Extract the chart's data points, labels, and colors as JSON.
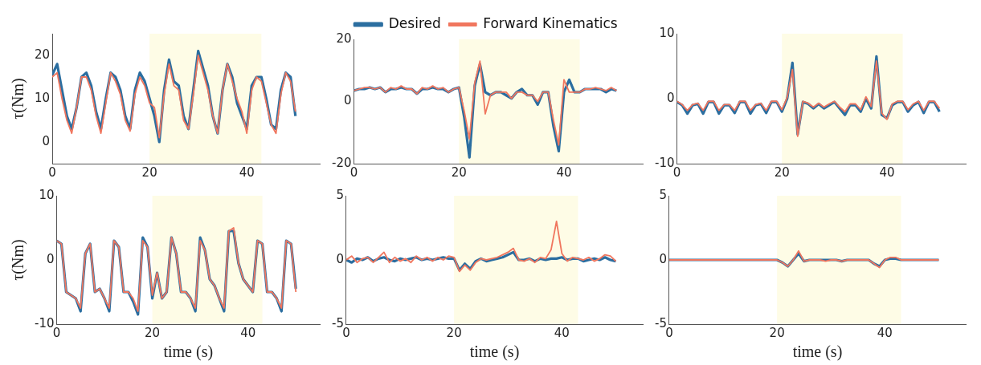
{
  "chart_data": [
    {
      "type": "line",
      "ylabel": "τ(Nm)",
      "x": [
        0,
        1,
        2,
        3,
        4,
        5,
        6,
        7,
        8,
        9,
        10,
        11,
        12,
        13,
        14,
        15,
        16,
        17,
        18,
        19,
        20,
        21,
        22,
        23,
        24,
        25,
        26,
        27,
        28,
        29,
        30,
        31,
        32,
        33,
        34,
        35,
        36,
        37,
        38,
        39,
        40,
        41,
        42,
        43,
        44,
        45,
        46,
        47,
        48,
        49,
        50
      ],
      "xlim": [
        0,
        55
      ],
      "xticks": [
        0,
        20,
        40
      ],
      "ylim": [
        -5,
        25
      ],
      "yticks": [
        0,
        10,
        20
      ],
      "grid": false,
      "bands": [
        {
          "axis": "x",
          "from": 20,
          "to": 43,
          "color": "#fefce6"
        }
      ],
      "series": [
        {
          "color": "#2b6ea0",
          "values": [
            15.5,
            18,
            12,
            6,
            3,
            8,
            15,
            16,
            13,
            7,
            3,
            10,
            16,
            15,
            12,
            6,
            3,
            12,
            16,
            14,
            10,
            6,
            0,
            12,
            19,
            14,
            13,
            6,
            3,
            12,
            21,
            17,
            13,
            6,
            2,
            12,
            18,
            15,
            9,
            6,
            3,
            13,
            15,
            15,
            10,
            4,
            3,
            12,
            16,
            15,
            6
          ]
        },
        {
          "color": "#f0765e",
          "values": [
            15,
            16,
            10,
            5,
            2,
            8,
            15,
            15,
            12,
            6,
            2,
            9,
            16,
            14,
            11,
            5,
            2.5,
            11,
            15,
            13,
            9,
            8,
            1,
            11,
            18,
            13,
            12,
            5,
            3,
            11,
            20,
            16,
            12,
            6,
            2,
            12,
            18,
            14,
            10,
            7,
            2,
            12,
            15,
            14,
            9,
            4,
            2,
            11,
            16,
            14,
            7
          ]
        }
      ]
    },
    {
      "type": "line",
      "legend": "top",
      "x": [
        0,
        1,
        2,
        3,
        4,
        5,
        6,
        7,
        8,
        9,
        10,
        11,
        12,
        13,
        14,
        15,
        16,
        17,
        18,
        19,
        20,
        21,
        22,
        23,
        24,
        25,
        26,
        27,
        28,
        29,
        30,
        31,
        32,
        33,
        34,
        35,
        36,
        37,
        38,
        39,
        40,
        41,
        42,
        43,
        44,
        45,
        46,
        47,
        48,
        49,
        50
      ],
      "xlim": [
        0,
        55
      ],
      "xticks": [
        0,
        20,
        40
      ],
      "ylim": [
        -20,
        20
      ],
      "yticks": [
        -20,
        0,
        20
      ],
      "grid": false,
      "bands": [
        {
          "axis": "x",
          "from": 20,
          "to": 43,
          "color": "#fefce6"
        }
      ],
      "series": [
        {
          "name": "Desired",
          "color": "#2b6ea0",
          "values": [
            3.5,
            4,
            4,
            4.5,
            4,
            4.5,
            3,
            4,
            4,
            4.5,
            4,
            4,
            2.5,
            4,
            4,
            4.5,
            4,
            4,
            3,
            4,
            4.5,
            -5,
            -18,
            5,
            12,
            3,
            2,
            3,
            3,
            2,
            1,
            3,
            4,
            2,
            2,
            -1,
            3,
            3,
            -8,
            -16,
            3,
            7,
            3,
            3,
            4,
            4,
            4,
            4,
            3,
            4,
            3.5
          ]
        },
        {
          "name": "Forward Kinematics",
          "color": "#f0765e",
          "values": [
            3.5,
            4,
            4.5,
            4.5,
            4,
            4.5,
            3,
            4.5,
            4,
            5,
            4,
            4,
            2.5,
            4.5,
            4,
            5,
            4,
            4.5,
            3,
            4,
            4.5,
            -3,
            -12,
            6,
            13,
            -4,
            2,
            3,
            3,
            3,
            1,
            3,
            3,
            2,
            2,
            0,
            3,
            3,
            -6,
            -14,
            7,
            3,
            3,
            3,
            4,
            4,
            4.5,
            4,
            3.5,
            4.5,
            3.5
          ]
        }
      ]
    },
    {
      "type": "line",
      "x": [
        0,
        1,
        2,
        3,
        4,
        5,
        6,
        7,
        8,
        9,
        10,
        11,
        12,
        13,
        14,
        15,
        16,
        17,
        18,
        19,
        20,
        21,
        22,
        23,
        24,
        25,
        26,
        27,
        28,
        29,
        30,
        31,
        32,
        33,
        34,
        35,
        36,
        37,
        38,
        39,
        40,
        41,
        42,
        43,
        44,
        45,
        46,
        47,
        48,
        49,
        50
      ],
      "xlim": [
        0,
        55
      ],
      "xticks": [
        0,
        20,
        40
      ],
      "ylim": [
        -10,
        10
      ],
      "yticks": [
        -10,
        0,
        10
      ],
      "grid": false,
      "bands": [
        {
          "axis": "x",
          "from": 20,
          "to": 43,
          "color": "#fefce6"
        }
      ],
      "series": [
        {
          "color": "#2b6ea0",
          "values": [
            -0.5,
            -1,
            -2.3,
            -1,
            -0.8,
            -2.3,
            -0.5,
            -0.5,
            -2.3,
            -1,
            -1,
            -2.2,
            -0.5,
            -0.5,
            -2.3,
            -1,
            -0.8,
            -2.2,
            -0.5,
            -0.5,
            -2,
            0,
            5.5,
            -5.5,
            -0.5,
            -0.8,
            -1.5,
            -0.8,
            -1.5,
            -1,
            -0.5,
            -1.5,
            -2.5,
            -1,
            -1,
            -2,
            0,
            -1.5,
            6.5,
            -2.5,
            -3,
            -1,
            -0.5,
            -0.5,
            -2,
            -1,
            -0.5,
            -2.2,
            -0.5,
            -0.5,
            -2
          ]
        },
        {
          "color": "#f0765e",
          "values": [
            -0.4,
            -0.9,
            -1.8,
            -0.9,
            -0.7,
            -1.8,
            -0.4,
            -0.4,
            -1.8,
            -0.9,
            -0.9,
            -1.8,
            -0.4,
            -0.4,
            -1.8,
            -0.9,
            -0.7,
            -1.8,
            -0.4,
            -0.4,
            -1.7,
            0.2,
            4.5,
            -5.8,
            -0.4,
            -0.7,
            -1.3,
            -0.7,
            -1.3,
            -0.8,
            -0.4,
            -1.3,
            -2,
            -0.8,
            -0.8,
            -1.7,
            0.3,
            -1.2,
            5.8,
            -2.2,
            -3.2,
            -0.8,
            -0.4,
            -0.4,
            -1.7,
            -0.8,
            -0.4,
            -1.8,
            -0.4,
            -0.4,
            -1.5
          ]
        }
      ]
    },
    {
      "type": "line",
      "xlabel": "time (s)",
      "ylabel": "τ(Nm)",
      "x": [
        0,
        1,
        2,
        3,
        4,
        5,
        6,
        7,
        8,
        9,
        10,
        11,
        12,
        13,
        14,
        15,
        16,
        17,
        18,
        19,
        20,
        21,
        22,
        23,
        24,
        25,
        26,
        27,
        28,
        29,
        30,
        31,
        32,
        33,
        34,
        35,
        36,
        37,
        38,
        39,
        40,
        41,
        42,
        43,
        44,
        45,
        46,
        47,
        48,
        49,
        50
      ],
      "xlim": [
        0,
        55
      ],
      "xticks": [
        0,
        20,
        40
      ],
      "ylim": [
        -10,
        10
      ],
      "yticks": [
        -10,
        0,
        10
      ],
      "grid": false,
      "bands": [
        {
          "axis": "x",
          "from": 20,
          "to": 43,
          "color": "#fefce6"
        }
      ],
      "series": [
        {
          "color": "#2b6ea0",
          "values": [
            3,
            2.5,
            -5,
            -5.5,
            -6,
            -8,
            1,
            2.5,
            -5,
            -4.5,
            -6,
            -8,
            3,
            2,
            -5,
            -5,
            -6.5,
            -8.5,
            3.5,
            2,
            -6,
            -2,
            -6,
            -5,
            3.5,
            1,
            -5,
            -5,
            -6,
            -8,
            3.5,
            1.5,
            -3,
            -4,
            -6,
            -8,
            4.5,
            4.5,
            -0.5,
            -3,
            -4,
            -5,
            3,
            2.5,
            -5,
            -5,
            -6,
            -8,
            3,
            2.5,
            -4.5
          ]
        },
        {
          "color": "#f0765e",
          "values": [
            3,
            2.5,
            -5,
            -5.5,
            -6,
            -7.5,
            1,
            2.5,
            -5,
            -4.5,
            -6,
            -7.5,
            3,
            2,
            -5,
            -5,
            -6,
            -8,
            3,
            2,
            -5.5,
            -2,
            -6,
            -5,
            3.5,
            1,
            -5,
            -5,
            -6,
            -7.5,
            3,
            1.5,
            -3,
            -4,
            -6,
            -7.5,
            4.5,
            5,
            -0.5,
            -3,
            -4,
            -5,
            3,
            2.5,
            -5,
            -5,
            -6,
            -7.5,
            3,
            2.5,
            -5
          ]
        }
      ]
    },
    {
      "type": "line",
      "xlabel": "time (s)",
      "x": [
        0,
        1,
        2,
        3,
        4,
        5,
        6,
        7,
        8,
        9,
        10,
        11,
        12,
        13,
        14,
        15,
        16,
        17,
        18,
        19,
        20,
        21,
        22,
        23,
        24,
        25,
        26,
        27,
        28,
        29,
        30,
        31,
        32,
        33,
        34,
        35,
        36,
        37,
        38,
        39,
        40,
        41,
        42,
        43,
        44,
        45,
        46,
        47,
        48,
        49,
        50
      ],
      "xlim": [
        0,
        55
      ],
      "xticks": [
        0,
        20,
        40
      ],
      "ylim": [
        -5,
        5
      ],
      "yticks": [
        -5,
        0,
        5
      ],
      "grid": false,
      "bands": [
        {
          "axis": "x",
          "from": 20,
          "to": 43,
          "color": "#fefce6"
        }
      ],
      "series": [
        {
          "color": "#2b6ea0",
          "values": [
            0,
            -0.2,
            0.1,
            0,
            0.2,
            -0.1,
            0.1,
            0.2,
            0,
            -0.1,
            0.1,
            0,
            0.1,
            0.2,
            0,
            0.1,
            0,
            0.1,
            0.2,
            0.1,
            0.1,
            -0.8,
            -0.3,
            -0.7,
            -0.1,
            0.1,
            -0.1,
            0,
            0.1,
            0.2,
            0.4,
            0.6,
            0,
            0,
            0.1,
            -0.1,
            0.1,
            0,
            0.1,
            0.1,
            0.2,
            0,
            0.1,
            0.1,
            -0.1,
            0,
            0.1,
            0,
            0.2,
            0,
            -0.1
          ]
        },
        {
          "color": "#f0765e",
          "values": [
            0,
            0.3,
            -0.2,
            0.1,
            0.2,
            -0.2,
            0.2,
            0.6,
            -0.2,
            0.2,
            -0.1,
            0.1,
            -0.2,
            0.3,
            0,
            0.2,
            -0.1,
            0.2,
            0,
            0.3,
            0.2,
            -0.9,
            -0.4,
            -0.8,
            -0.2,
            0.1,
            0,
            0.1,
            0.2,
            0.4,
            0.6,
            0.9,
            0,
            -0.1,
            0.1,
            -0.2,
            0.2,
            0.1,
            0.8,
            3,
            0.5,
            -0.1,
            0.2,
            0.1,
            0,
            0.2,
            -0.1,
            0.1,
            0.4,
            0.3,
            -0.1
          ]
        }
      ]
    },
    {
      "type": "line",
      "xlabel": "time (s)",
      "x": [
        0,
        1,
        2,
        3,
        4,
        5,
        6,
        7,
        8,
        9,
        10,
        11,
        12,
        13,
        14,
        15,
        16,
        17,
        18,
        19,
        20,
        21,
        22,
        23,
        24,
        25,
        26,
        27,
        28,
        29,
        30,
        31,
        32,
        33,
        34,
        35,
        36,
        37,
        38,
        39,
        40,
        41,
        42,
        43,
        44,
        45,
        46,
        47,
        48,
        49,
        50
      ],
      "xlim": [
        0,
        55
      ],
      "xticks": [
        0,
        20,
        40
      ],
      "ylim": [
        -5,
        5
      ],
      "yticks": [
        -5,
        0,
        5
      ],
      "grid": false,
      "bands": [
        {
          "axis": "x",
          "from": 20,
          "to": 43,
          "color": "#fefce6"
        }
      ],
      "series": [
        {
          "color": "#2b6ea0",
          "values": [
            0,
            0,
            0,
            0,
            0,
            0,
            0,
            0,
            0,
            0,
            0,
            0,
            0,
            0,
            0,
            0,
            0,
            0,
            0,
            0,
            0,
            -0.2,
            -0.5,
            0,
            0.5,
            -0.1,
            0,
            0,
            0,
            0,
            0,
            0,
            -0.1,
            0,
            0,
            0,
            0,
            0,
            -0.3,
            -0.5,
            0,
            0.1,
            0.1,
            0,
            0,
            0,
            0,
            0,
            0,
            0,
            0
          ]
        },
        {
          "color": "#f0765e",
          "values": [
            0,
            0,
            0,
            0,
            0,
            0,
            0,
            0,
            0,
            0,
            0,
            0,
            0,
            0,
            0,
            0,
            0,
            0,
            0,
            0,
            0,
            -0.2,
            -0.5,
            0,
            0.7,
            -0.1,
            0,
            0,
            0,
            -0.1,
            0,
            0,
            -0.1,
            0,
            0,
            0,
            0,
            0,
            -0.3,
            -0.6,
            0,
            0.2,
            0.2,
            0,
            0,
            0,
            0,
            0,
            0,
            0,
            0
          ]
        }
      ]
    }
  ]
}
